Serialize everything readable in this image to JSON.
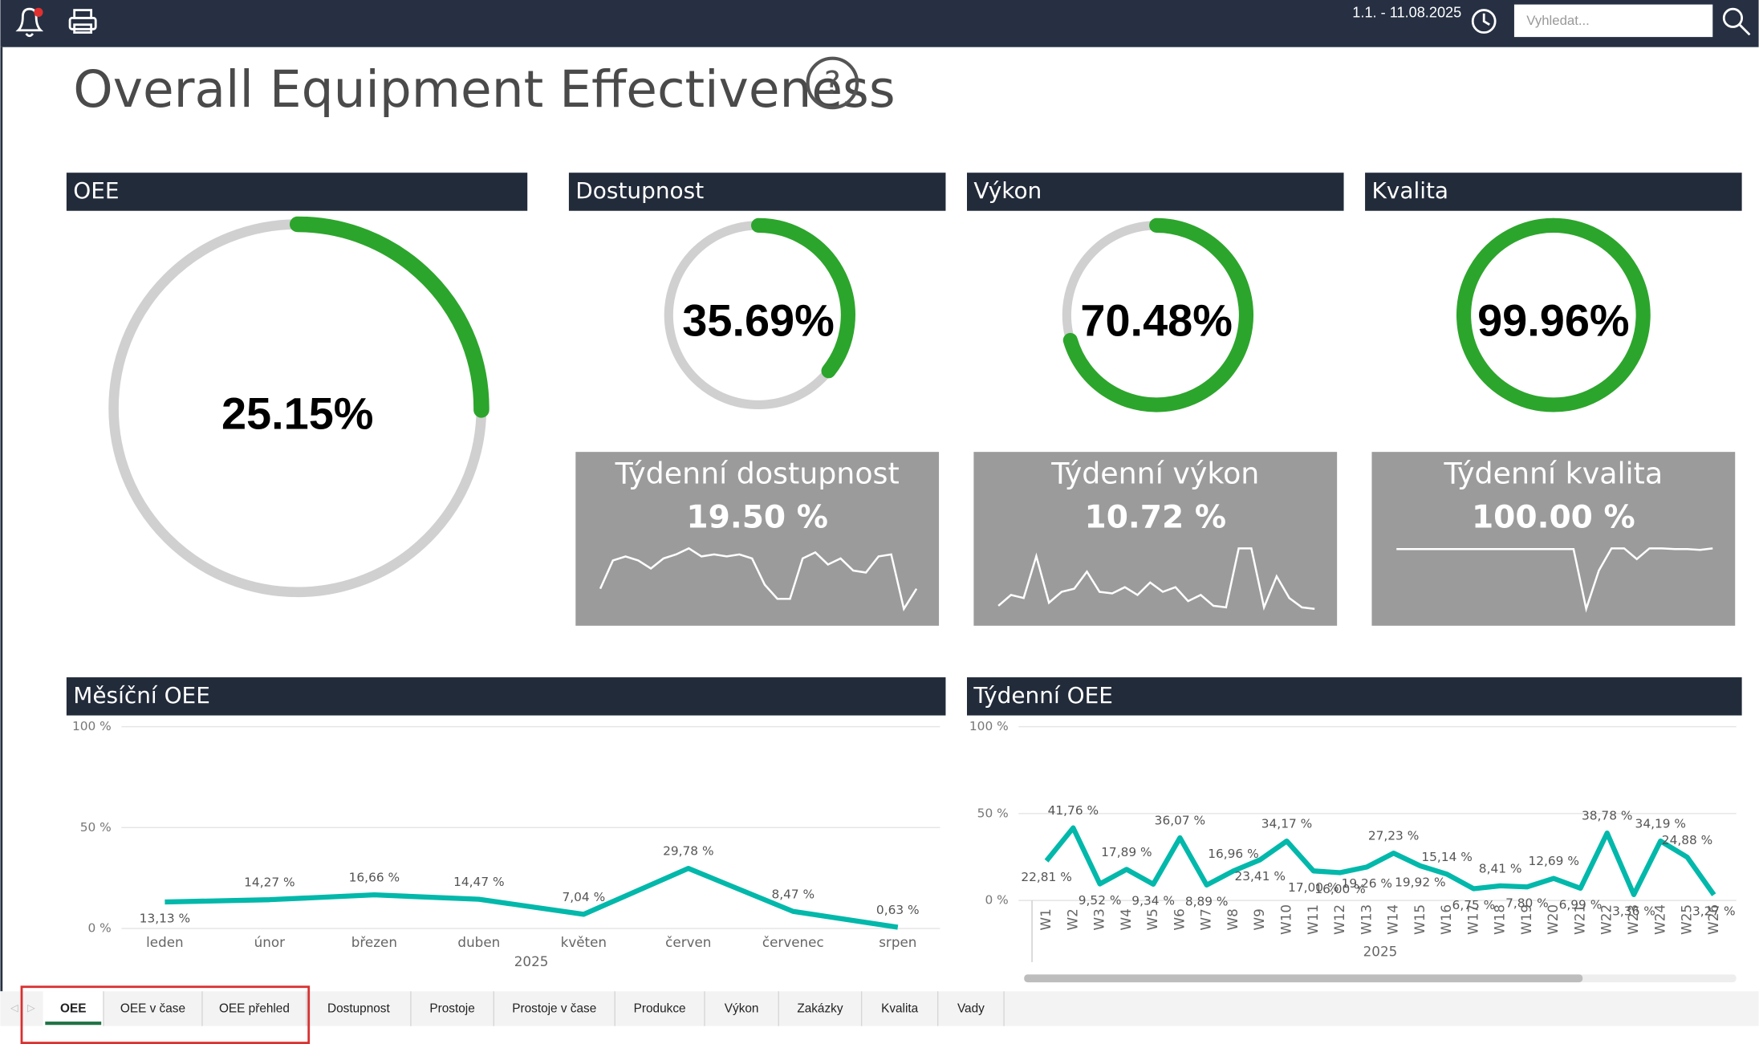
{
  "header": {
    "date_range": "1.1. - 11.08.2025",
    "search_placeholder": "Vyhledat..."
  },
  "title": "Overall Equipment Effectiveness",
  "chart_data": [
    {
      "type": "gauge",
      "title": "OEE",
      "values": [
        25.15
      ],
      "value_labels": [
        "25.15%"
      ],
      "ylim": [
        0,
        100
      ],
      "color": "#2ca52c"
    },
    {
      "type": "gauge",
      "title": "Dostupnost",
      "values": [
        35.69
      ],
      "value_labels": [
        "35.69%"
      ],
      "ylim": [
        0,
        100
      ],
      "color": "#2ca52c"
    },
    {
      "type": "gauge",
      "title": "Výkon",
      "values": [
        70.48
      ],
      "value_labels": [
        "70.48%"
      ],
      "ylim": [
        0,
        100
      ],
      "color": "#2ca52c"
    },
    {
      "type": "gauge",
      "title": "Kvalita",
      "values": [
        99.96
      ],
      "value_labels": [
        "99.96%"
      ],
      "ylim": [
        0,
        100
      ],
      "color": "#2ca52c"
    },
    {
      "type": "sparkline",
      "title": "Týdenní dostupnost",
      "subtitle": "19.50 %",
      "color": "#ffffff",
      "values": [
        10,
        24,
        26,
        24,
        20,
        25,
        27,
        30,
        26,
        27,
        26,
        27,
        25,
        12,
        5,
        5,
        25,
        28,
        22,
        25,
        19,
        18,
        26,
        27,
        0,
        10
      ]
    },
    {
      "type": "sparkline",
      "title": "Týdenní výkon",
      "subtitle": "10.72 %",
      "color": "#ffffff",
      "values": [
        3,
        10,
        8,
        35,
        5,
        12,
        14,
        25,
        12,
        11,
        15,
        10,
        18,
        12,
        15,
        6,
        10,
        3,
        2,
        40,
        40,
        2,
        22,
        8,
        2,
        1
      ]
    },
    {
      "type": "sparkline",
      "title": "Týdenní kvalita",
      "subtitle": "100.00 %",
      "color": "#ffffff",
      "values": [
        99.98,
        99.98,
        99.98,
        99.98,
        99.98,
        99.98,
        99.98,
        99.98,
        99.98,
        99.98,
        99.98,
        99.98,
        99.98,
        99.98,
        99.98,
        99.2,
        99.7,
        99.99,
        99.99,
        99.85,
        99.99,
        99.99,
        99.98,
        99.98,
        99.97,
        99.99
      ]
    },
    {
      "type": "line",
      "title": "Měsíční OEE",
      "xlabel": "2025",
      "color": "#01b8aa",
      "categories": [
        "leden",
        "únor",
        "březen",
        "duben",
        "květen",
        "červen",
        "červenec",
        "srpen"
      ],
      "values": [
        13.13,
        14.27,
        16.66,
        14.47,
        7.04,
        29.78,
        8.47,
        0.63
      ],
      "value_labels": [
        "13,13 %",
        "14,27 %",
        "16,66 %",
        "14,47 %",
        "7,04 %",
        "29,78 %",
        "8,47 %",
        "0,63 %"
      ],
      "ylim": [
        0,
        100
      ],
      "yticks": [
        {
          "value": 0,
          "label": "0 %"
        },
        {
          "value": 50,
          "label": "50 %"
        },
        {
          "value": 100,
          "label": "100 %"
        }
      ],
      "grid": true
    },
    {
      "type": "line",
      "title": "Týdenní OEE",
      "xlabel": "2025",
      "color": "#01b8aa",
      "categories": [
        "W1",
        "W2",
        "W3",
        "W4",
        "W5",
        "W6",
        "W7",
        "W8",
        "W9",
        "W10",
        "W11",
        "W12",
        "W13",
        "W14",
        "W15",
        "W16",
        "W17",
        "W18",
        "W19",
        "W20",
        "W21",
        "W22",
        "W23",
        "W24",
        "W25",
        "W26"
      ],
      "values": [
        22.81,
        41.76,
        9.52,
        17.89,
        9.34,
        36.07,
        8.89,
        16.96,
        23.41,
        34.17,
        17.0,
        16.0,
        19.26,
        27.23,
        19.92,
        15.14,
        6.75,
        8.41,
        7.8,
        12.69,
        6.99,
        38.78,
        3.36,
        34.19,
        24.88,
        3.27
      ],
      "value_labels": [
        "22,81 %",
        "41,76 %",
        "9,52 %",
        "17,89 %",
        "9,34 %",
        "36,07 %",
        "8,89 %",
        "16,96 %",
        "23,41 %",
        "34,17 %",
        "17,00 %",
        "16,00 %",
        "19,26 %",
        "27,23 %",
        "19,92 %",
        "15,14 %",
        "6,75 %",
        "8,41 %",
        "7,80 %",
        "12,69 %",
        "6,99 %",
        "38,78 %",
        "3,36 %",
        "34,19 %",
        "24,88 %",
        "3,27 %"
      ],
      "ylim": [
        0,
        100
      ],
      "yticks": [
        {
          "value": 0,
          "label": "0 %"
        },
        {
          "value": 50,
          "label": "50 %"
        },
        {
          "value": 100,
          "label": "100 %"
        }
      ],
      "grid": true
    }
  ],
  "tabs": [
    "OEE",
    "OEE v čase",
    "OEE přehled",
    "Dostupnost",
    "Prostoje",
    "Prostoje v čase",
    "Produkce",
    "Výkon",
    "Zakázky",
    "Kvalita",
    "Vady"
  ]
}
